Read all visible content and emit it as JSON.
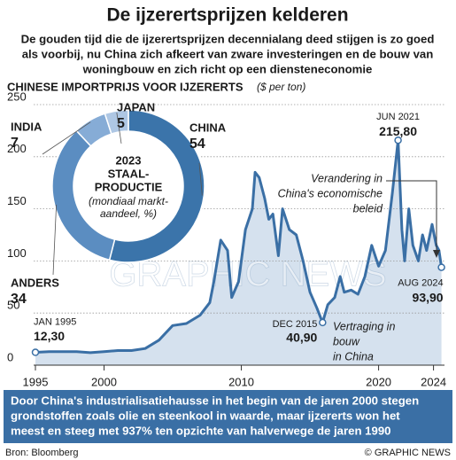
{
  "header": {
    "title": "De ijzerertsprijzen kelderen",
    "subtitle": [
      "De gouden tijd die de ijzerertsprijzen decennialang deed stijgen is zo goed",
      "als voorbij, nu China zich afkeert van zware investeringen en de bouw van",
      "woningbouw en zich richt op een diensteneconomie"
    ]
  },
  "chart_data": [
    {
      "type": "line",
      "title": "CHINESE IMPORTPRIJS VOOR IJZERERTS",
      "unit": "($ per ton)",
      "series": [
        {
          "name": "Importprijs",
          "color": "#3a6fa5",
          "fill": "#d5e1ee",
          "x": [
            1995.0,
            1996.0,
            1997.0,
            1998.0,
            1999.0,
            2000.0,
            2001.0,
            2002.0,
            2003.0,
            2004.0,
            2005.0,
            2006.0,
            2007.0,
            2007.7,
            2008.0,
            2008.5,
            2009.0,
            2009.3,
            2009.8,
            2010.3,
            2010.8,
            2011.0,
            2011.3,
            2011.7,
            2012.0,
            2012.3,
            2012.7,
            2013.0,
            2013.5,
            2014.0,
            2014.5,
            2015.0,
            2015.5,
            2015.92,
            2016.3,
            2016.8,
            2017.2,
            2017.5,
            2018.0,
            2018.5,
            2019.0,
            2019.5,
            2020.0,
            2020.5,
            2021.0,
            2021.42,
            2021.7,
            2021.9,
            2022.2,
            2022.5,
            2022.9,
            2023.2,
            2023.5,
            2023.9,
            2024.2,
            2024.4,
            2024.58
          ],
          "values": [
            12.3,
            13,
            13,
            13,
            12,
            13,
            14,
            14,
            16,
            24,
            38,
            40,
            48,
            60,
            80,
            120,
            110,
            65,
            80,
            130,
            150,
            185,
            180,
            160,
            140,
            145,
            105,
            150,
            130,
            125,
            100,
            70,
            55,
            40.9,
            58,
            65,
            85,
            70,
            72,
            68,
            85,
            115,
            95,
            110,
            165,
            215.8,
            130,
            100,
            150,
            115,
            100,
            125,
            110,
            135,
            115,
            110,
            93.9
          ]
        }
      ],
      "xlim": [
        1995,
        2024.8
      ],
      "xticks": [
        1995,
        2000,
        2010,
        2020,
        2024
      ],
      "ylim": [
        0,
        250
      ],
      "yticks": [
        0,
        50,
        100,
        150,
        200,
        250
      ],
      "grid": true,
      "annotations": [
        {
          "date": "JAN 1995",
          "x": 1995.0,
          "value": 12.3,
          "label": "12,30"
        },
        {
          "date": "DEC 2015",
          "x": 2015.92,
          "value": 40.9,
          "label": "40,90"
        },
        {
          "date": "JUN 2021",
          "x": 2021.42,
          "value": 215.8,
          "label": "215,80"
        },
        {
          "date": "AUG 2024",
          "x": 2024.58,
          "value": 93.9,
          "label": "93,90"
        }
      ],
      "notes": [
        [
          "Verandering in",
          "China's economische",
          "beleid"
        ],
        [
          "Vertraging in",
          "bouw",
          "in China"
        ]
      ]
    },
    {
      "type": "pie",
      "title": [
        "2023",
        "STAAL-",
        "PRODUCTIE"
      ],
      "subtitle": [
        "(mondiaal markt-",
        "aandeel, %)"
      ],
      "categories": [
        "CHINA",
        "ANDERS",
        "INDIA",
        "JAPAN"
      ],
      "values": [
        54,
        34,
        7,
        5
      ],
      "colors": [
        "#3b74aa",
        "#5b8dc1",
        "#86acd6",
        "#aec7e4"
      ]
    }
  ],
  "watermark": "GRAPHIC NEWS",
  "footer": {
    "text": [
      "Door China's industrialisatiehausse in het begin van de jaren 2000 stegen",
      "grondstoffen zoals olie en steenkool in waarde, maar ijzererts won het",
      "meest en steeg met 937% ten opzichte van halverwege de jaren 1990"
    ],
    "source": "Bron: Bloomberg",
    "credit": "© GRAPHIC NEWS"
  }
}
